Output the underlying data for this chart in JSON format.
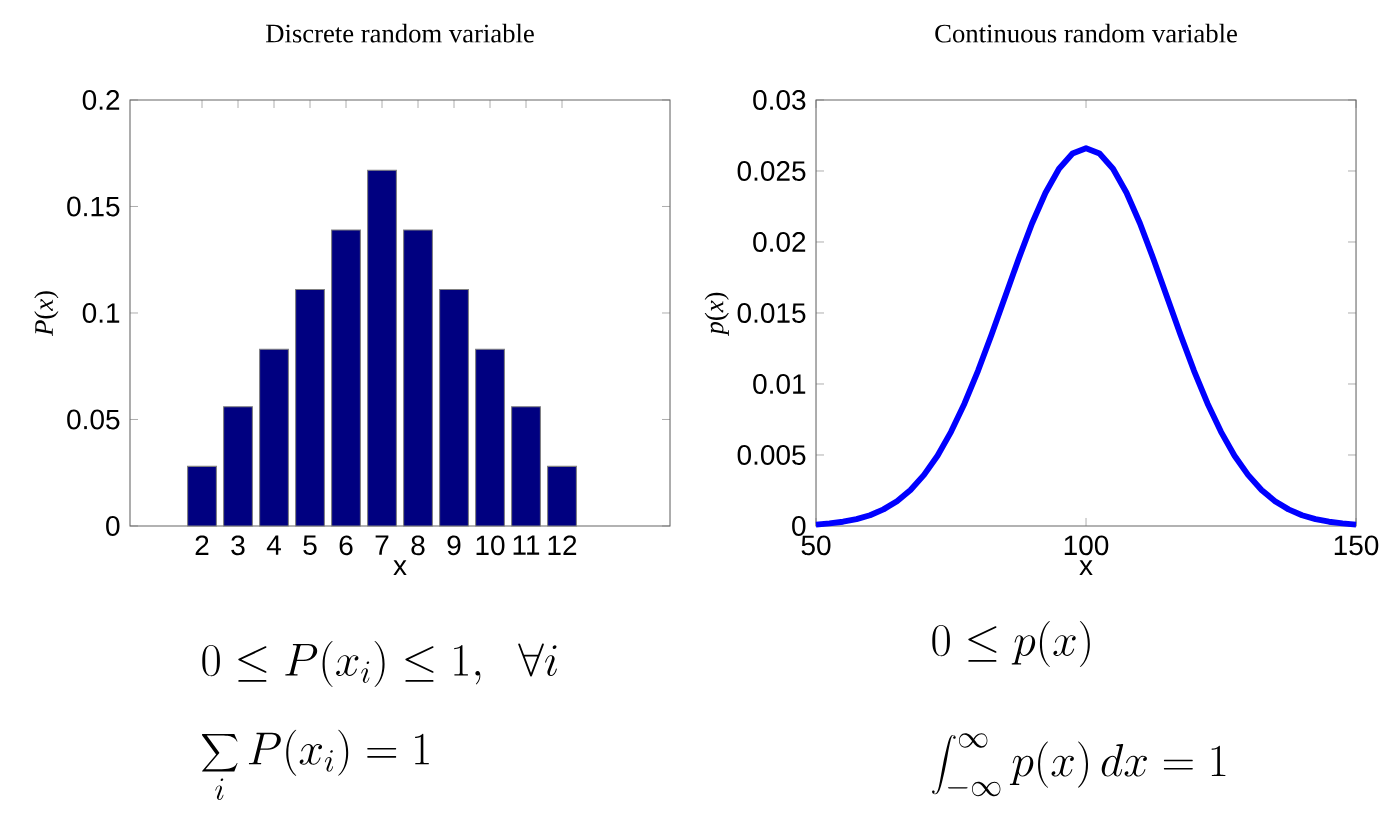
{
  "chart_data": [
    {
      "type": "bar",
      "title": "Discrete random variable",
      "xlabel": "x",
      "ylabel": "*P*(*x*)",
      "x": [
        2,
        3,
        4,
        5,
        6,
        7,
        8,
        9,
        10,
        11,
        12
      ],
      "values": [
        0.028,
        0.056,
        0.083,
        0.111,
        0.139,
        0.167,
        0.139,
        0.111,
        0.083,
        0.056,
        0.028
      ],
      "color": "#000080",
      "xlim": [
        0,
        15
      ],
      "xticks": [
        2,
        3,
        4,
        5,
        6,
        7,
        8,
        9,
        10,
        11,
        12
      ],
      "ylim": [
        0,
        0.2
      ],
      "yticks": [
        0,
        0.05,
        0.1,
        0.15,
        0.2
      ],
      "annotations": [
        "0 \\le P(x_i) \\le 1,\\ \\ \\forall i",
        "\\sum_i P(x_i) = 1"
      ]
    },
    {
      "type": "line",
      "title": "Continuous random variable",
      "xlabel": "x",
      "ylabel": "*p*(*x*)",
      "x": [
        50,
        52.5,
        55,
        57.5,
        60,
        62.5,
        65,
        67.5,
        70,
        72.5,
        75,
        77.5,
        80,
        82.5,
        85,
        87.5,
        90,
        92.5,
        95,
        97.5,
        100,
        102.5,
        105,
        107.5,
        110,
        112.5,
        115,
        117.5,
        120,
        122.5,
        125,
        127.5,
        130,
        132.5,
        135,
        137.5,
        140,
        142.5,
        145,
        147.5,
        150
      ],
      "values": [
        0.0001,
        0.00018,
        0.0003,
        0.00048,
        0.00076,
        0.00117,
        0.00175,
        0.00254,
        0.0036,
        0.00495,
        0.00663,
        0.00863,
        0.01093,
        0.01347,
        0.01613,
        0.01879,
        0.0213,
        0.02347,
        0.02516,
        0.02623,
        0.0266,
        0.02623,
        0.02516,
        0.02347,
        0.0213,
        0.01879,
        0.01613,
        0.01347,
        0.01093,
        0.00863,
        0.00663,
        0.00495,
        0.0036,
        0.00254,
        0.00175,
        0.00117,
        0.00076,
        0.00048,
        0.0003,
        0.00018,
        0.0001
      ],
      "color": "#0000ff",
      "xlim": [
        50,
        150
      ],
      "xticks": [
        50,
        100,
        150
      ],
      "ylim": [
        0,
        0.03
      ],
      "yticks": [
        0,
        0.005,
        0.01,
        0.015,
        0.02,
        0.025,
        0.03
      ],
      "annotations": [
        "0 \\le p(x)",
        "\\int_{-\\infty}^{\\infty} p(x)\\,dx = 1"
      ]
    }
  ]
}
